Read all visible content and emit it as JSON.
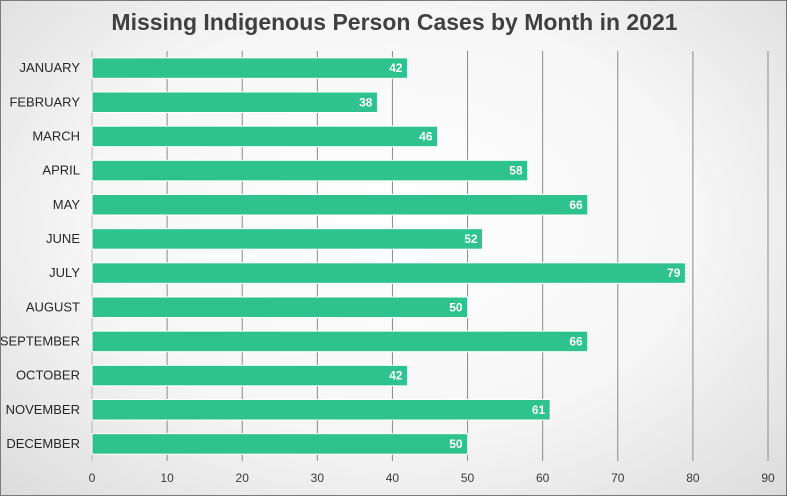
{
  "chart_data": {
    "type": "bar",
    "orientation": "horizontal",
    "title": "Missing Indigenous Person Cases by Month in 2021",
    "categories": [
      "JANUARY",
      "FEBRUARY",
      "MARCH",
      "APRIL",
      "MAY",
      "JUNE",
      "JULY",
      "AUGUST",
      "SEPTEMBER",
      "OCTOBER",
      "NOVEMBER",
      "DECEMBER"
    ],
    "values": [
      42,
      38,
      46,
      58,
      66,
      52,
      79,
      50,
      66,
      42,
      61,
      50
    ],
    "xlim": [
      0,
      90
    ],
    "xticks": [
      0,
      10,
      20,
      30,
      40,
      50,
      60,
      70,
      80,
      90
    ],
    "xlabel": "",
    "ylabel": "",
    "grid": "vertical",
    "legend": "none",
    "data_labels": "inside-end",
    "colors": {
      "bar": "#2ec28e",
      "bar_edge": "#ffffff",
      "gridline": "#8a8a8a",
      "title": "#404040"
    }
  }
}
